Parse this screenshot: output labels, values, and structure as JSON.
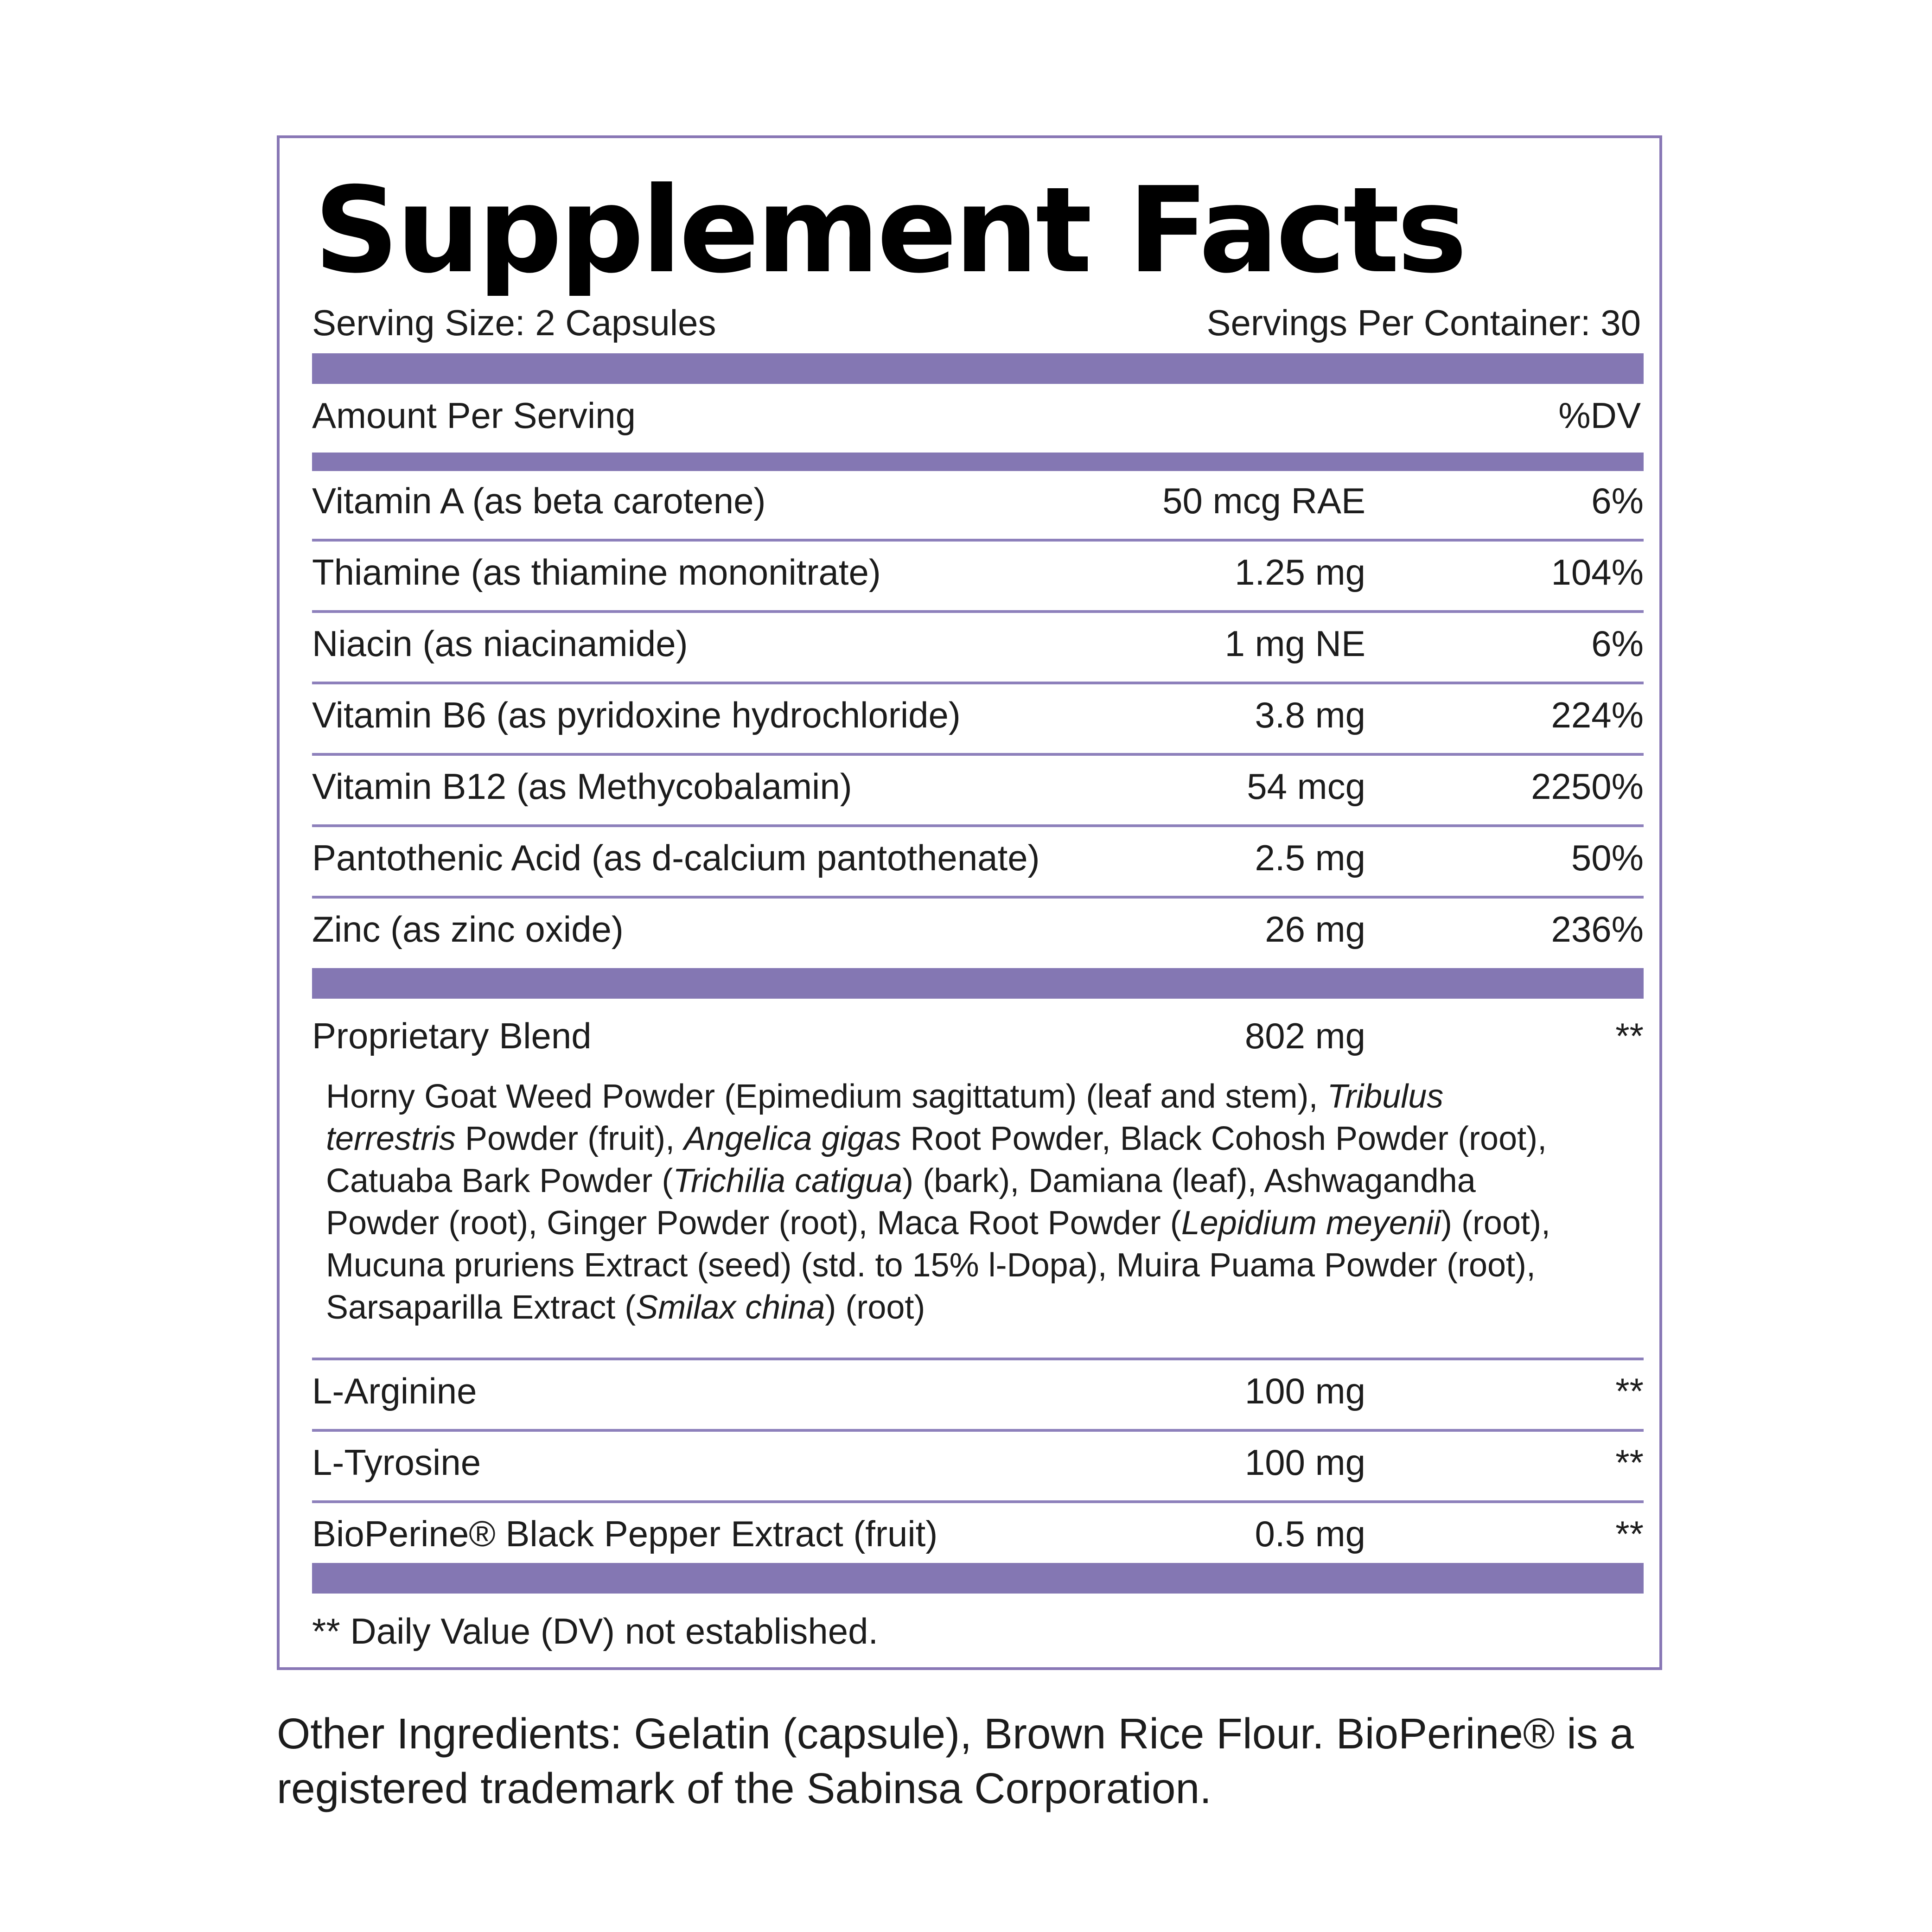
{
  "title": "Supplement Facts",
  "serving_size": "Serving Size: 2 Capsules",
  "servings_per_container": "Servings Per Container: 30",
  "amount_per_serving": "Amount Per Serving",
  "dv_header": "%DV",
  "nutrients": [
    {
      "name": "Vitamin A (as beta carotene)",
      "amount": "50 mcg RAE",
      "dv": "6%"
    },
    {
      "name": "Thiamine (as thiamine mononitrate)",
      "amount": "1.25 mg",
      "dv": "104%"
    },
    {
      "name": "Niacin (as niacinamide)",
      "amount": "1 mg NE",
      "dv": "6%"
    },
    {
      "name": "Vitamin B6 (as pyridoxine hydrochloride)",
      "amount": "3.8 mg",
      "dv": "224%"
    },
    {
      "name": "Vitamin B12 (as Methycobalamin)",
      "amount": "54 mcg",
      "dv": "2250%"
    },
    {
      "name": "Pantothenic Acid (as d-calcium pantothenate)",
      "amount": "2.5 mg",
      "dv": "50%"
    },
    {
      "name": "Zinc (as zinc oxide)",
      "amount": "26 mg",
      "dv": "236%"
    }
  ],
  "blend": {
    "name": "Proprietary Blend",
    "amount": "802 mg",
    "dv": "**",
    "parts": [
      {
        "text": "Horny Goat Weed Powder (Epimedium sagittatum) (leaf and stem), "
      },
      {
        "text": "Tribulus terrestris",
        "italic": true
      },
      {
        "text": " Powder (fruit), "
      },
      {
        "text": "Angelica gigas",
        "italic": true
      },
      {
        "text": " Root Powder, Black Cohosh Powder (root), Catuaba Bark Powder ("
      },
      {
        "text": "Trichilia catigua",
        "italic": true
      },
      {
        "text": ") (bark), Damiana (leaf), Ashwagandha Powder (root), Ginger Powder (root), Maca Root Powder ("
      },
      {
        "text": "Lepidium meyenii",
        "italic": true
      },
      {
        "text": ") (root), Mucuna pruriens Extract (seed) (std. to 15% l-Dopa), Muira Puama Powder (root), Sarsaparilla Extract ("
      },
      {
        "text": "Smilax china",
        "italic": true
      },
      {
        "text": ") (root)"
      }
    ]
  },
  "other_items": [
    {
      "name": "L-Arginine",
      "amount": "100 mg",
      "dv": "**"
    },
    {
      "name": "L-Tyrosine",
      "amount": "100 mg",
      "dv": "**"
    },
    {
      "name": "BioPerine® Black Pepper Extract (fruit)",
      "amount": "0.5 mg",
      "dv": "**"
    }
  ],
  "footnote": "** Daily Value (DV) not established.",
  "other_ingredients": "Other Ingredients: Gelatin (capsule), Brown Rice Flour.  BioPerine® is a registered trademark of the Sabinsa Corporation.",
  "colors": {
    "accent": "#8477b3",
    "border": "#8877b5",
    "text": "#1c1c1c"
  }
}
